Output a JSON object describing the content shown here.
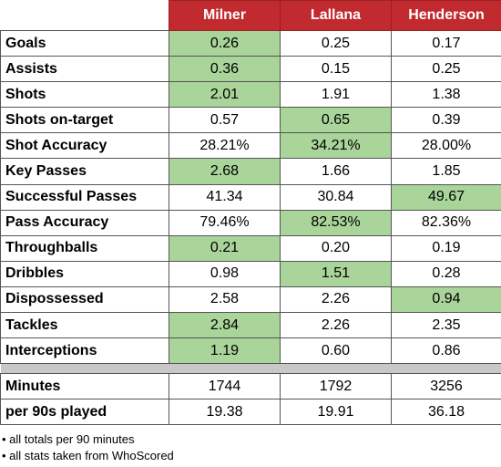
{
  "header": [
    "Milner",
    "Lallana",
    "Henderson"
  ],
  "rows": [
    {
      "label": "Goals",
      "values": [
        "0.26",
        "0.25",
        "0.17"
      ],
      "best": 0
    },
    {
      "label": "Assists",
      "values": [
        "0.36",
        "0.15",
        "0.25"
      ],
      "best": 0
    },
    {
      "label": "Shots",
      "values": [
        "2.01",
        "1.91",
        "1.38"
      ],
      "best": 0
    },
    {
      "label": "Shots on-target",
      "values": [
        "0.57",
        "0.65",
        "0.39"
      ],
      "best": 1
    },
    {
      "label": "Shot Accuracy",
      "values": [
        "28.21%",
        "34.21%",
        "28.00%"
      ],
      "best": 1
    },
    {
      "label": "Key Passes",
      "values": [
        "2.68",
        "1.66",
        "1.85"
      ],
      "best": 0
    },
    {
      "label": "Successful Passes",
      "values": [
        "41.34",
        "30.84",
        "49.67"
      ],
      "best": 2
    },
    {
      "label": "Pass Accuracy",
      "values": [
        "79.46%",
        "82.53%",
        "82.36%"
      ],
      "best": 1
    },
    {
      "label": "Throughballs",
      "values": [
        "0.21",
        "0.20",
        "0.19"
      ],
      "best": 0
    },
    {
      "label": "Dribbles",
      "values": [
        "0.98",
        "1.51",
        "0.28"
      ],
      "best": 1
    },
    {
      "label": "Dispossessed",
      "values": [
        "2.58",
        "2.26",
        "0.94"
      ],
      "best": 2
    },
    {
      "label": "Tackles",
      "values": [
        "2.84",
        "2.26",
        "2.35"
      ],
      "best": 0
    },
    {
      "label": "Interceptions",
      "values": [
        "1.19",
        "0.60",
        "0.86"
      ],
      "best": 0
    }
  ],
  "footer_rows": [
    {
      "label": "Minutes",
      "values": [
        "1744",
        "1792",
        "3256"
      ]
    },
    {
      "label": "per 90s played",
      "values": [
        "19.38",
        "19.91",
        "36.18"
      ]
    }
  ],
  "highlight_color": "#a9d49a",
  "header_color": "#c12a2f",
  "notes": [
    "• all totals per 90 minutes",
    "• all stats taken from WhoScored"
  ]
}
